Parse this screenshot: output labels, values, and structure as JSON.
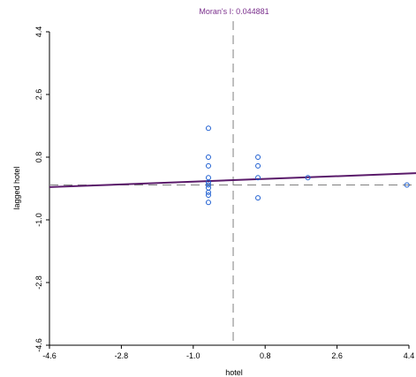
{
  "chart_data": {
    "type": "scatter",
    "title": "Moran's I: 0.044881",
    "xlabel": "hotel",
    "ylabel": "lagged hotel",
    "xlim": [
      -4.6,
      4.4
    ],
    "ylim": [
      -4.6,
      4.4
    ],
    "x_ticks": [
      -4.6,
      -2.8,
      -1.0,
      0.8,
      2.6,
      4.4
    ],
    "y_ticks": [
      -4.6,
      -2.8,
      -1.0,
      0.8,
      2.6,
      4.4
    ],
    "x_tick_labels": [
      "-4.6",
      "-2.8",
      "-1.0",
      "0.8",
      "2.6",
      "4.4"
    ],
    "y_tick_labels": [
      "-4.6",
      "-2.8",
      "-1.0",
      "0.8",
      "2.6",
      "4.4"
    ],
    "mean_x": 0.0,
    "mean_y": 0.0,
    "points": {
      "x": [
        -0.62,
        -0.62,
        -0.62,
        -0.62,
        -0.62,
        -0.62,
        -0.62,
        -0.62,
        -0.62,
        -0.62,
        0.62,
        0.62,
        0.62,
        0.62,
        1.87,
        4.35
      ],
      "y": [
        1.63,
        0.8,
        0.55,
        0.21,
        0.0,
        -0.08,
        -0.21,
        -0.29,
        -0.5,
        0.08,
        0.8,
        0.55,
        0.21,
        -0.37,
        0.21,
        0.0
      ]
    },
    "regression_line": {
      "x": [
        -4.6,
        4.6
      ],
      "y": [
        -0.06,
        0.34
      ]
    },
    "colors": {
      "title": "#7a2f8c",
      "points": "#1f5fd1",
      "regression": "#5a1a6a",
      "reference_lines": "#7f7f7f",
      "axes": "#000000"
    },
    "grid": false
  }
}
